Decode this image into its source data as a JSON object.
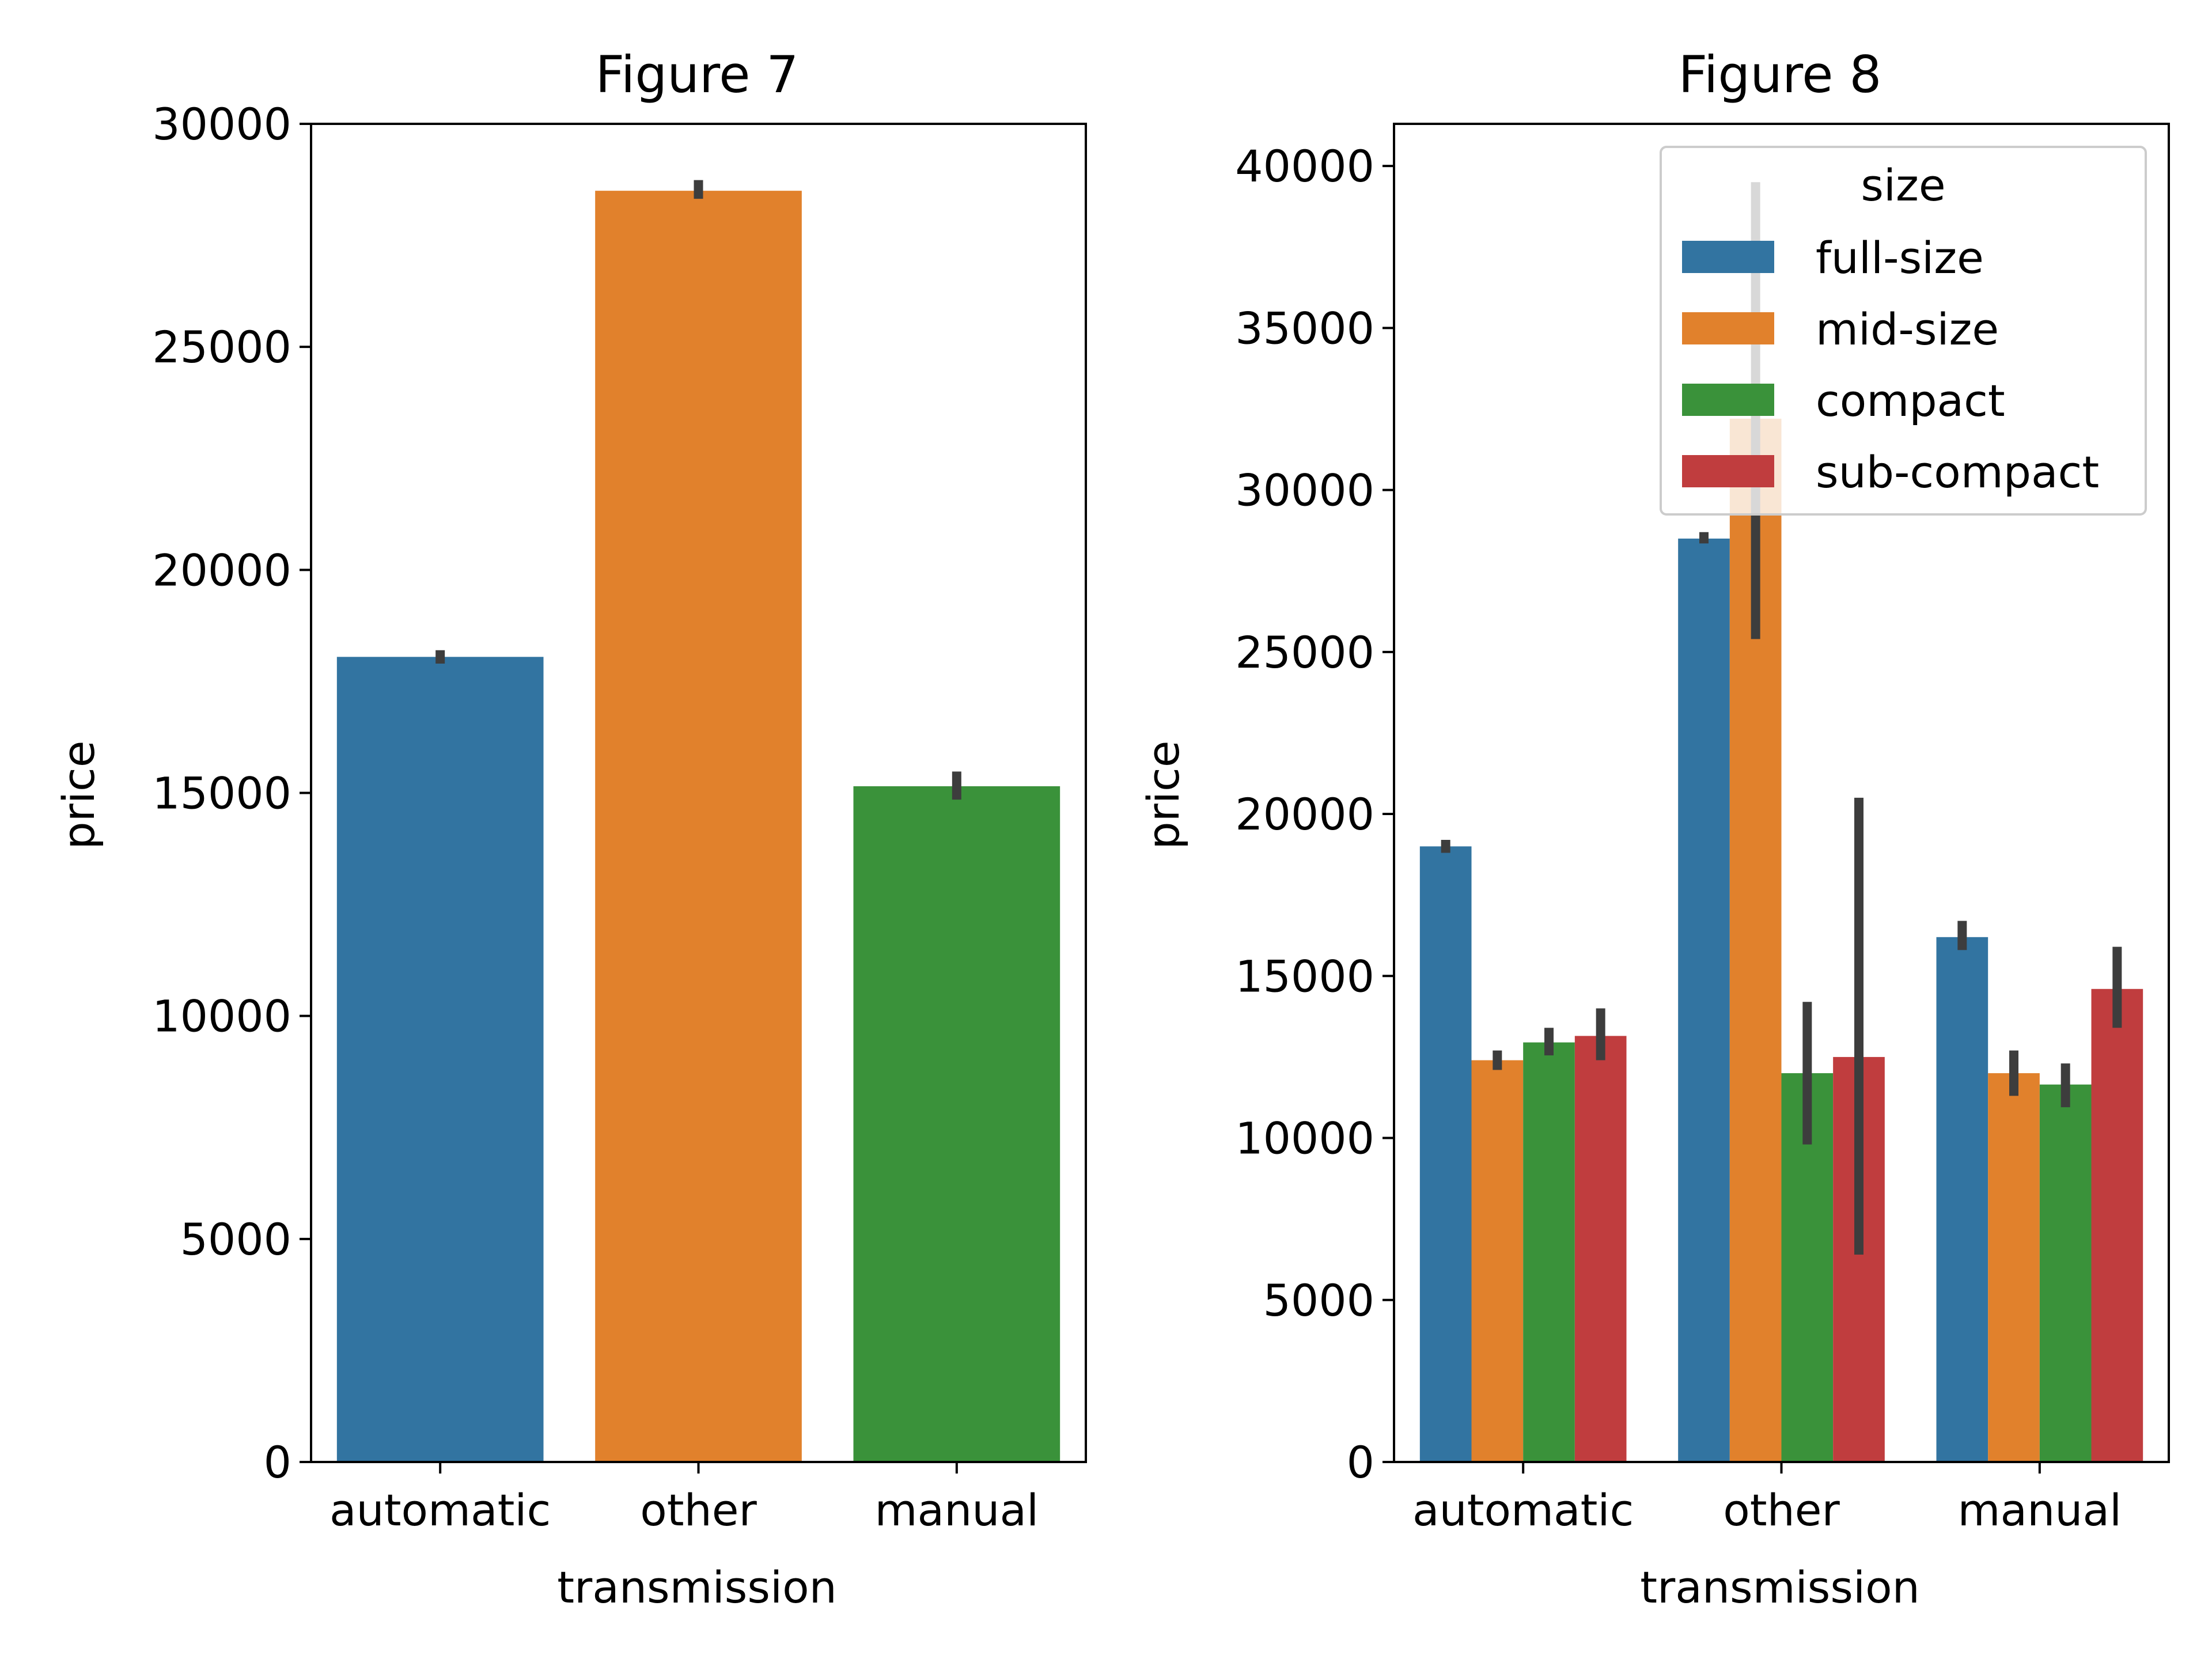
{
  "chart_data": [
    {
      "type": "bar",
      "title": "Figure 7",
      "xlabel": "transmission",
      "ylabel": "price",
      "categories": [
        "automatic",
        "other",
        "manual"
      ],
      "values": [
        18050,
        28500,
        15150
      ],
      "error_bars": [
        [
          17900,
          18200
        ],
        [
          28320,
          28740
        ],
        [
          14850,
          15480
        ]
      ],
      "colors": [
        "#3274a1",
        "#e1812c",
        "#3a923a"
      ],
      "ylim": [
        0,
        30000
      ],
      "yticks": [
        0,
        5000,
        10000,
        15000,
        20000,
        25000,
        30000
      ],
      "grid": false
    },
    {
      "type": "bar",
      "title": "Figure 8",
      "xlabel": "transmission",
      "ylabel": "price",
      "categories": [
        "automatic",
        "other",
        "manual"
      ],
      "ylim": [
        0,
        41300
      ],
      "yticks": [
        0,
        5000,
        10000,
        15000,
        20000,
        25000,
        30000,
        35000,
        40000
      ],
      "grid": false,
      "legend": {
        "title": "size",
        "placement": "top-right"
      },
      "series": [
        {
          "name": "full-size",
          "color": "#3274a1",
          "values": [
            19000,
            28500,
            16200
          ],
          "error_bars": [
            [
              18800,
              19200
            ],
            [
              28350,
              28700
            ],
            [
              15800,
              16700
            ]
          ]
        },
        {
          "name": "mid-size",
          "color": "#e1812c",
          "values": [
            12400,
            32200,
            12000
          ],
          "error_bars": [
            [
              12100,
              12700
            ],
            [
              25400,
              39500
            ],
            [
              11300,
              12700
            ]
          ]
        },
        {
          "name": "compact",
          "color": "#3a923a",
          "values": [
            12950,
            12000,
            11650
          ],
          "error_bars": [
            [
              12550,
              13400
            ],
            [
              9800,
              14200
            ],
            [
              10950,
              12300
            ]
          ]
        },
        {
          "name": "sub-compact",
          "color": "#c03d3e",
          "values": [
            13150,
            12500,
            14600
          ],
          "error_bars": [
            [
              12400,
              14000
            ],
            [
              6400,
              20500
            ],
            [
              13400,
              15900
            ]
          ]
        }
      ]
    }
  ]
}
